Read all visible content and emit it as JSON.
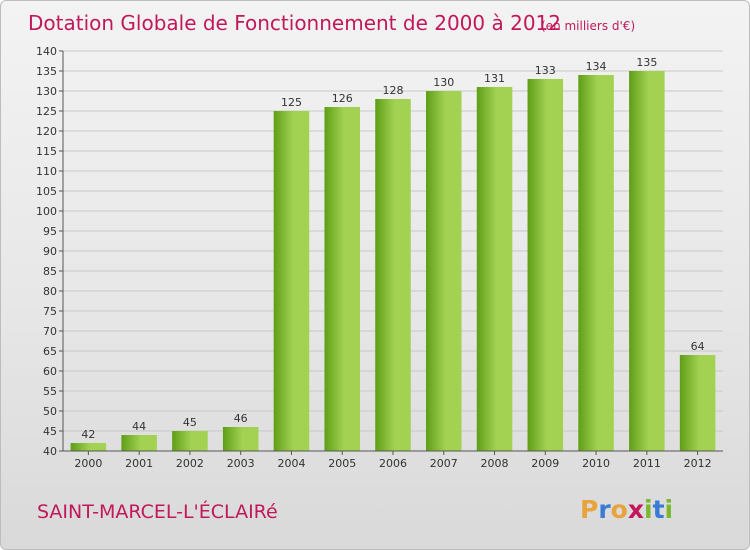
{
  "header": {
    "title": "Dotation Globale de Fonctionnement de 2000 à 2012",
    "unit": "(en milliers d'€)"
  },
  "footer": {
    "town": "SAINT-MARCEL-L'ÉCLAIRé",
    "logo_letters": [
      "P",
      "r",
      "o",
      "x",
      "i",
      "t",
      "i"
    ],
    "logo_colors": [
      "#e8a33b",
      "#3a7bd5",
      "#e8a33b",
      "#c2185b",
      "#7cb82f",
      "#3a7bd5",
      "#7cb82f"
    ]
  },
  "colors": {
    "bar_light": "#a3d252",
    "bar_dark": "#5f9e17",
    "grid": "#c9c9c9"
  },
  "chart_data": {
    "type": "bar",
    "title": "Dotation Globale de Fonctionnement de 2000 à 2012",
    "subtitle": "(en milliers d'€)",
    "xlabel": "",
    "ylabel": "",
    "categories": [
      "2000",
      "2001",
      "2002",
      "2003",
      "2004",
      "2005",
      "2006",
      "2007",
      "2008",
      "2009",
      "2010",
      "2011",
      "2012"
    ],
    "values": [
      42,
      44,
      45,
      46,
      125,
      126,
      128,
      130,
      131,
      133,
      134,
      135,
      64
    ],
    "ylim": [
      40,
      140
    ],
    "ytick_step": 5,
    "grid": true,
    "legend": "none"
  }
}
